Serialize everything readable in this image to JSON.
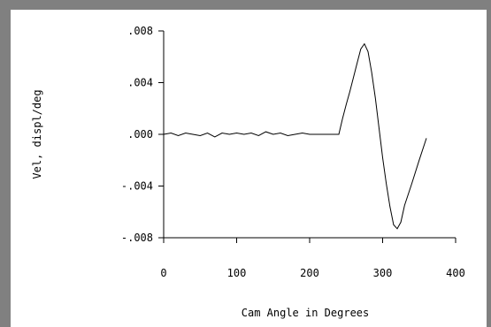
{
  "chart_data": {
    "type": "line",
    "title": "",
    "xlabel": "Cam Angle in Degrees",
    "ylabel": "Vel, displ/deg",
    "xlim": [
      0,
      400
    ],
    "ylim": [
      -0.008,
      0.008
    ],
    "grid": false,
    "x_ticks": [
      {
        "value": 0,
        "label": "0"
      },
      {
        "value": 100,
        "label": "100"
      },
      {
        "value": 200,
        "label": "200"
      },
      {
        "value": 300,
        "label": "300"
      },
      {
        "value": 400,
        "label": "400"
      }
    ],
    "y_ticks": [
      {
        "value": 0.008,
        "label": ".008"
      },
      {
        "value": 0.004,
        "label": ".004"
      },
      {
        "value": 0.0,
        "label": ".000"
      },
      {
        "value": -0.004,
        "label": "-.004"
      },
      {
        "value": -0.008,
        "label": "-.008"
      }
    ],
    "series": [
      {
        "color": "#000000",
        "x": [
          0,
          10,
          20,
          30,
          40,
          50,
          60,
          70,
          80,
          90,
          100,
          110,
          120,
          130,
          140,
          150,
          160,
          170,
          180,
          190,
          200,
          210,
          220,
          230,
          240,
          245,
          250,
          255,
          260,
          265,
          270,
          275,
          280,
          285,
          290,
          295,
          300,
          305,
          310,
          315,
          320,
          325,
          330,
          340,
          350,
          360
        ],
        "y": [
          0.0,
          0.0001,
          -0.0001,
          0.0001,
          0.0,
          -0.0001,
          0.0001,
          -0.0002,
          0.0001,
          0.0,
          0.0001,
          0.0,
          0.0001,
          -0.0001,
          0.0002,
          0.0,
          0.0001,
          -0.0001,
          0.0,
          0.0001,
          0.0,
          0.0,
          0.0,
          0.0,
          0.0,
          0.0012,
          0.0023,
          0.0033,
          0.0044,
          0.0055,
          0.0066,
          0.007,
          0.0064,
          0.0048,
          0.0028,
          0.0005,
          -0.0018,
          -0.0038,
          -0.0056,
          -0.007,
          -0.0073,
          -0.0068,
          -0.0055,
          -0.0038,
          -0.002,
          -0.0003
        ]
      }
    ]
  }
}
